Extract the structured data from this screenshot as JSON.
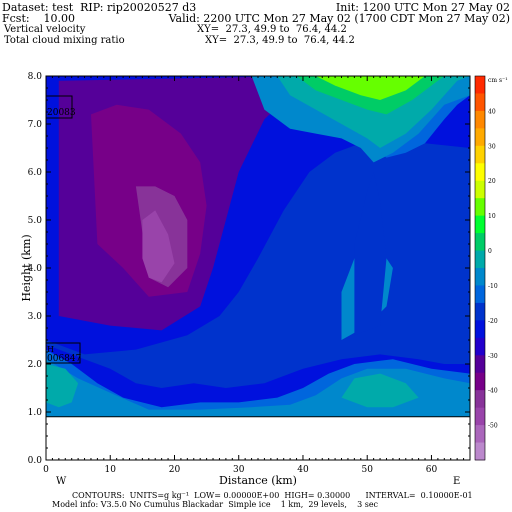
{
  "header": {
    "dataset": "Dataset: test  RIP: rip20020527 d3",
    "init": "Init: 1200 UTC Mon 27 May 02",
    "fcst": "Fcst:    10.00",
    "valid": "Valid: 2200 UTC Mon 27 May 02 (1700 CDT Mon 27 May 02)",
    "field1": "Vertical velocity",
    "xy1": "XY=  27.3, 49.9 to  76.4, 44.2",
    "field2": "Total cloud mixing ratio",
    "xy2": "XY=  27.3, 49.9 to  76.4, 44.2"
  },
  "footer": {
    "contours": "CONTOURS:  UNITS=g kg⁻¹  LOW= 0.00000E+00  HIGH= 0.30000      INTERVAL=  0.10000E-01",
    "model": "Model info: V3.5.0 No Cumulus Blackadar  Simple ice    1 km,  29 levels,    3 sec"
  },
  "labels": {
    "west": "W",
    "east": "E",
    "box1": "20083",
    "box2": "006847",
    "box2_top": "H"
  },
  "chart_data": {
    "type": "heatmap",
    "title": "",
    "xlabel": "Distance (km)",
    "ylabel": "Height (km)",
    "xlim": [
      0,
      66
    ],
    "ylim": [
      0,
      8
    ],
    "xticks": [
      0,
      10,
      20,
      30,
      40,
      50,
      60
    ],
    "yticks": [
      "0.0",
      "1.0",
      "2.0",
      "3.0",
      "4.0",
      "5.0",
      "6.0",
      "7.0",
      "8.0"
    ],
    "ground_height": 0.9,
    "colorbar": {
      "units": "cm s⁻¹",
      "ticks": [
        "40",
        "30",
        "20",
        "10",
        "0",
        "-10",
        "-20",
        "-30",
        "-40",
        "-50"
      ],
      "colors": [
        "#ff2a00",
        "#ff5500",
        "#ff8800",
        "#ffaa00",
        "#ffd200",
        "#ffff00",
        "#ccff00",
        "#66ff00",
        "#00ff30",
        "#00cc66",
        "#00aaaa",
        "#0088cc",
        "#0066dd",
        "#0033cc",
        "#0011dd",
        "#2200cc",
        "#550099",
        "#770088",
        "#883399",
        "#9944aa",
        "#aa66bb",
        "#bb88cc"
      ]
    },
    "fields": [
      {
        "shape": "rect",
        "x": [
          0,
          66
        ],
        "y": [
          0.9,
          8
        ],
        "value": -15
      },
      {
        "shape": "poly",
        "value": -25,
        "points": [
          [
            0,
            8
          ],
          [
            0,
            2.5
          ],
          [
            6,
            2.2
          ],
          [
            14,
            2.3
          ],
          [
            22,
            2.6
          ],
          [
            27,
            3.0
          ],
          [
            30,
            3.5
          ],
          [
            33,
            4.2
          ],
          [
            37,
            5.2
          ],
          [
            41,
            6.0
          ],
          [
            45,
            6.4
          ],
          [
            49,
            6.6
          ],
          [
            52,
            6.9
          ],
          [
            55,
            6.7
          ],
          [
            59,
            6.6
          ],
          [
            66,
            6.5
          ],
          [
            66,
            8
          ]
        ]
      },
      {
        "shape": "poly",
        "value": -30,
        "points": [
          [
            2,
            7.9
          ],
          [
            2,
            3.0
          ],
          [
            10,
            2.8
          ],
          [
            18,
            2.7
          ],
          [
            24,
            3.2
          ],
          [
            26,
            4.0
          ],
          [
            28,
            5.0
          ],
          [
            30,
            6.0
          ],
          [
            34,
            7.1
          ],
          [
            38,
            7.6
          ],
          [
            40,
            8
          ]
        ]
      },
      {
        "shape": "poly",
        "value": -35,
        "points": [
          [
            7,
            7.2
          ],
          [
            8,
            4.5
          ],
          [
            12,
            4.0
          ],
          [
            16,
            3.4
          ],
          [
            22,
            3.5
          ],
          [
            24,
            4.3
          ],
          [
            25,
            5.3
          ],
          [
            24,
            6.2
          ],
          [
            21,
            6.8
          ],
          [
            16,
            7.3
          ],
          [
            11,
            7.4
          ]
        ]
      },
      {
        "shape": "poly",
        "value": -40,
        "points": [
          [
            14,
            5.7
          ],
          [
            16,
            3.8
          ],
          [
            19,
            3.6
          ],
          [
            22,
            4.0
          ],
          [
            22,
            5.0
          ],
          [
            20,
            5.5
          ],
          [
            17,
            5.7
          ]
        ]
      },
      {
        "shape": "poly",
        "value": -45,
        "points": [
          [
            15,
            4.2
          ],
          [
            16,
            3.8
          ],
          [
            18,
            3.7
          ],
          [
            20,
            4.1
          ],
          [
            19,
            4.7
          ],
          [
            17,
            5.2
          ],
          [
            15,
            5.0
          ]
        ]
      },
      {
        "shape": "poly",
        "value": -10,
        "points": [
          [
            38,
            8
          ],
          [
            41,
            7.2
          ],
          [
            45,
            6.8
          ],
          [
            50,
            6.6
          ],
          [
            53,
            6.3
          ],
          [
            56,
            6.4
          ],
          [
            59,
            6.6
          ],
          [
            62,
            7.1
          ],
          [
            64,
            7.4
          ],
          [
            66,
            7.6
          ],
          [
            66,
            8
          ]
        ]
      },
      {
        "shape": "poly",
        "value": -5,
        "points": [
          [
            32,
            8
          ],
          [
            34,
            7.3
          ],
          [
            38,
            6.9
          ],
          [
            42,
            6.8
          ],
          [
            46,
            6.7
          ],
          [
            49,
            6.5
          ],
          [
            51,
            6.2
          ],
          [
            54,
            6.4
          ],
          [
            58,
            6.8
          ],
          [
            62,
            7.4
          ],
          [
            66,
            7.6
          ],
          [
            66,
            8
          ]
        ]
      },
      {
        "shape": "poly",
        "value": 0,
        "points": [
          [
            36,
            8
          ],
          [
            38,
            7.6
          ],
          [
            42,
            7.3
          ],
          [
            46,
            7.0
          ],
          [
            50,
            6.7
          ],
          [
            52,
            6.5
          ],
          [
            56,
            6.8
          ],
          [
            60,
            7.3
          ],
          [
            64,
            7.9
          ],
          [
            66,
            8
          ]
        ]
      },
      {
        "shape": "poly",
        "value": 5,
        "points": [
          [
            39,
            8
          ],
          [
            42,
            7.7
          ],
          [
            46,
            7.5
          ],
          [
            50,
            7.3
          ],
          [
            53,
            7.2
          ],
          [
            57,
            7.5
          ],
          [
            61,
            7.9
          ],
          [
            62,
            8
          ]
        ]
      },
      {
        "shape": "poly",
        "value": 15,
        "points": [
          [
            42,
            8
          ],
          [
            45,
            7.8
          ],
          [
            49,
            7.6
          ],
          [
            52,
            7.5
          ],
          [
            56,
            7.7
          ],
          [
            59,
            8
          ]
        ]
      },
      {
        "shape": "poly",
        "value": -5,
        "points": [
          [
            46,
            2.5
          ],
          [
            46,
            3.5
          ],
          [
            48,
            4.2
          ],
          [
            52,
            4.4
          ],
          [
            54,
            4.0
          ],
          [
            53,
            3.2
          ],
          [
            50,
            2.8
          ]
        ]
      },
      {
        "shape": "poly",
        "value": -15,
        "points": [
          [
            48,
            2.6
          ],
          [
            48,
            4.5
          ],
          [
            50,
            5.6
          ],
          [
            51,
            6.0
          ],
          [
            52,
            5.4
          ],
          [
            53,
            4.2
          ],
          [
            52,
            2.8
          ]
        ]
      },
      {
        "shape": "poly",
        "value": -20,
        "points": [
          [
            0,
            0.9
          ],
          [
            0,
            2.4
          ],
          [
            6,
            2.1
          ],
          [
            10,
            1.9
          ],
          [
            14,
            1.6
          ],
          [
            18,
            1.5
          ],
          [
            23,
            1.6
          ],
          [
            28,
            1.5
          ],
          [
            34,
            1.6
          ],
          [
            40,
            1.9
          ],
          [
            46,
            2.1
          ],
          [
            52,
            2.2
          ],
          [
            58,
            2.1
          ],
          [
            62,
            2.0
          ],
          [
            66,
            2.0
          ],
          [
            66,
            0.9
          ]
        ]
      },
      {
        "shape": "poly",
        "value": -10,
        "points": [
          [
            0,
            0.9
          ],
          [
            0,
            2.3
          ],
          [
            4,
            2.0
          ],
          [
            8,
            1.6
          ],
          [
            12,
            1.3
          ],
          [
            18,
            1.1
          ],
          [
            24,
            1.2
          ],
          [
            30,
            1.2
          ],
          [
            36,
            1.3
          ],
          [
            40,
            1.5
          ],
          [
            44,
            1.8
          ],
          [
            48,
            2.0
          ],
          [
            54,
            2.1
          ],
          [
            60,
            1.9
          ],
          [
            66,
            1.8
          ],
          [
            66,
            0.9
          ]
        ]
      },
      {
        "shape": "poly",
        "value": -5,
        "points": [
          [
            0,
            0.9
          ],
          [
            0,
            2.1
          ],
          [
            5,
            1.7
          ],
          [
            10,
            1.4
          ],
          [
            16,
            1.05
          ],
          [
            24,
            1.05
          ],
          [
            32,
            1.1
          ],
          [
            38,
            1.15
          ],
          [
            42,
            1.35
          ],
          [
            46,
            1.7
          ],
          [
            50,
            1.9
          ],
          [
            56,
            1.9
          ],
          [
            62,
            1.7
          ],
          [
            66,
            1.6
          ],
          [
            66,
            0.9
          ]
        ]
      },
      {
        "shape": "poly",
        "value": 0,
        "points": [
          [
            0,
            1.2
          ],
          [
            0,
            2.0
          ],
          [
            3,
            1.9
          ],
          [
            5,
            1.6
          ],
          [
            4,
            1.2
          ],
          [
            2,
            1.1
          ]
        ]
      },
      {
        "shape": "poly",
        "value": 0,
        "points": [
          [
            46,
            1.3
          ],
          [
            48,
            1.7
          ],
          [
            52,
            1.8
          ],
          [
            56,
            1.6
          ],
          [
            58,
            1.3
          ],
          [
            54,
            1.1
          ],
          [
            50,
            1.1
          ]
        ]
      }
    ]
  }
}
